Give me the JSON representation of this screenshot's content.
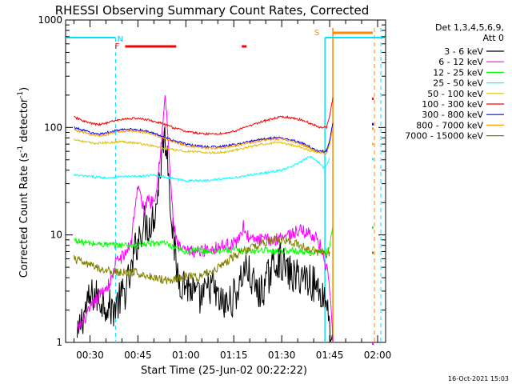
{
  "chart_data": {
    "type": "line",
    "title": "RHESSI Observing Summary Count Rates, Corrected",
    "xlabel": "Start Time (25-Jun-02 00:22:22)",
    "ylabel_main": "Corrected Count Rate (s",
    "ylabel_sup1": "-1",
    "ylabel_mid": " detector",
    "ylabel_sup2": "-1",
    "ylabel_end": ")",
    "y_scale": "log",
    "ylim": [
      1,
      1000
    ],
    "xlim_minutes": [
      22.37,
      122.5
    ],
    "x_ticks": [
      {
        "label": "00:30",
        "m": 30
      },
      {
        "label": "00:45",
        "m": 45
      },
      {
        "label": "01:00",
        "m": 60
      },
      {
        "label": "01:15",
        "m": 75
      },
      {
        "label": "01:30",
        "m": 90
      },
      {
        "label": "01:45",
        "m": 105
      },
      {
        "label": "02:00",
        "m": 120
      }
    ],
    "y_ticks": [
      {
        "label": "1",
        "v": 1
      },
      {
        "label": "10",
        "v": 10
      },
      {
        "label": "100",
        "v": 100
      },
      {
        "label": "1000",
        "v": 1000
      }
    ],
    "legend_header": [
      "Det 1,3,4,5,6,9,",
      "Att 0"
    ],
    "series": [
      {
        "name": "3 - 6 keV",
        "color": "#000000",
        "points": [
          [
            26,
            1
          ],
          [
            27,
            1.5
          ],
          [
            29,
            2.2
          ],
          [
            31,
            2.8
          ],
          [
            33,
            2.5
          ],
          [
            35,
            2.3
          ],
          [
            37,
            2.0
          ],
          [
            39,
            2.4
          ],
          [
            41,
            3.0
          ],
          [
            43,
            4.5
          ],
          [
            44,
            7
          ],
          [
            45,
            9
          ],
          [
            46,
            11
          ],
          [
            47,
            13
          ],
          [
            48,
            12
          ],
          [
            49,
            13
          ],
          [
            50,
            15
          ],
          [
            51,
            22
          ],
          [
            52,
            40
          ],
          [
            53,
            80
          ],
          [
            54,
            70
          ],
          [
            55,
            25
          ],
          [
            56,
            10
          ],
          [
            57,
            5
          ],
          [
            58,
            3.8
          ],
          [
            60,
            3.5
          ],
          [
            62,
            3.0
          ],
          [
            64,
            2.5
          ],
          [
            66,
            2.8
          ],
          [
            68,
            3.5
          ],
          [
            70,
            2.5
          ],
          [
            72,
            2.2
          ],
          [
            74,
            2.4
          ],
          [
            76,
            3.0
          ],
          [
            78,
            4.5
          ],
          [
            79,
            5
          ],
          [
            81,
            3.5
          ],
          [
            83,
            2.8
          ],
          [
            85,
            3.5
          ],
          [
            87,
            5
          ],
          [
            89,
            6
          ],
          [
            90,
            5.5
          ],
          [
            92,
            4.5
          ],
          [
            94,
            4
          ],
          [
            96,
            4.2
          ],
          [
            98,
            4.0
          ],
          [
            100,
            3.5
          ],
          [
            102,
            3.0
          ],
          [
            104,
            2.5
          ],
          [
            105,
            1.5
          ],
          [
            106,
            1
          ]
        ]
      },
      {
        "name": "6 - 12 keV",
        "color": "#ff00ff",
        "points": [
          [
            26,
            1.3
          ],
          [
            28,
            1.6
          ],
          [
            30,
            2.0
          ],
          [
            32,
            2.5
          ],
          [
            34,
            3.0
          ],
          [
            36,
            3.5
          ],
          [
            37,
            4.0
          ],
          [
            38,
            5.5
          ],
          [
            39,
            6.0
          ],
          [
            41,
            6.5
          ],
          [
            43,
            9
          ],
          [
            44,
            18
          ],
          [
            45,
            28
          ],
          [
            46,
            22
          ],
          [
            47,
            16
          ],
          [
            48,
            23
          ],
          [
            49,
            20
          ],
          [
            50,
            22
          ],
          [
            51,
            30
          ],
          [
            52,
            60
          ],
          [
            53,
            120
          ],
          [
            53.5,
            200
          ],
          [
            54,
            130
          ],
          [
            55,
            40
          ],
          [
            56,
            14
          ],
          [
            57,
            9
          ],
          [
            58,
            7.5
          ],
          [
            60,
            7
          ],
          [
            64,
            7
          ],
          [
            68,
            7.5
          ],
          [
            72,
            8
          ],
          [
            76,
            8.5
          ],
          [
            78,
            12
          ],
          [
            80,
            9
          ],
          [
            84,
            9
          ],
          [
            88,
            9
          ],
          [
            90,
            10
          ],
          [
            92,
            10
          ],
          [
            96,
            11
          ],
          [
            100,
            10
          ],
          [
            102,
            8
          ],
          [
            104,
            5
          ],
          [
            105,
            3
          ],
          [
            106,
            1
          ]
        ]
      },
      {
        "name": "12 - 25 keV",
        "color": "#00ff00",
        "points": [
          [
            25,
            9
          ],
          [
            28,
            8.5
          ],
          [
            30,
            8.3
          ],
          [
            34,
            8.2
          ],
          [
            38,
            8.0
          ],
          [
            40,
            8.1
          ],
          [
            44,
            8.0
          ],
          [
            48,
            8.2
          ],
          [
            50,
            8.3
          ],
          [
            52,
            8.5
          ],
          [
            54,
            8.2
          ],
          [
            56,
            7.5
          ],
          [
            60,
            7.0
          ],
          [
            64,
            7.2
          ],
          [
            68,
            7.0
          ],
          [
            72,
            7.3
          ],
          [
            76,
            7.2
          ],
          [
            80,
            7.0
          ],
          [
            84,
            7.3
          ],
          [
            88,
            7.0
          ],
          [
            92,
            7.2
          ],
          [
            96,
            7.0
          ],
          [
            100,
            6.8
          ],
          [
            104,
            7.0
          ],
          [
            105,
            8
          ],
          [
            106,
            12
          ]
        ]
      },
      {
        "name": "25 - 50 keV",
        "color": "#00ffff",
        "points": [
          [
            25,
            36
          ],
          [
            30,
            35
          ],
          [
            35,
            34
          ],
          [
            40,
            35
          ],
          [
            45,
            35
          ],
          [
            50,
            36
          ],
          [
            55,
            34
          ],
          [
            60,
            32
          ],
          [
            65,
            32
          ],
          [
            70,
            33
          ],
          [
            75,
            34
          ],
          [
            80,
            36
          ],
          [
            85,
            38
          ],
          [
            90,
            40
          ],
          [
            93,
            43
          ],
          [
            96,
            48
          ],
          [
            98,
            52
          ],
          [
            99,
            54
          ],
          [
            100,
            52
          ],
          [
            102,
            46
          ],
          [
            103,
            42
          ],
          [
            104,
            45
          ],
          [
            105,
            52
          ]
        ]
      },
      {
        "name": "50 - 100 keV",
        "color": "#e0c000",
        "points": [
          [
            25,
            78
          ],
          [
            28,
            74
          ],
          [
            31,
            71
          ],
          [
            35,
            72
          ],
          [
            38,
            73
          ],
          [
            40,
            74
          ],
          [
            44,
            72
          ],
          [
            48,
            69
          ],
          [
            52,
            65
          ],
          [
            56,
            62
          ],
          [
            60,
            60
          ],
          [
            64,
            59
          ],
          [
            68,
            58
          ],
          [
            72,
            59
          ],
          [
            76,
            62
          ],
          [
            80,
            66
          ],
          [
            84,
            70
          ],
          [
            88,
            72
          ],
          [
            90,
            72
          ],
          [
            92,
            70
          ],
          [
            95,
            67
          ],
          [
            98,
            62
          ],
          [
            100,
            60
          ],
          [
            102,
            59
          ],
          [
            104,
            62
          ],
          [
            105,
            72
          ]
        ]
      },
      {
        "name": "100 - 300 keV",
        "color": "#ff0000",
        "points": [
          [
            25,
            125
          ],
          [
            27,
            118
          ],
          [
            29,
            112
          ],
          [
            31,
            108
          ],
          [
            33,
            106
          ],
          [
            35,
            110
          ],
          [
            38,
            116
          ],
          [
            41,
            120
          ],
          [
            44,
            122
          ],
          [
            48,
            118
          ],
          [
            52,
            110
          ],
          [
            56,
            100
          ],
          [
            60,
            92
          ],
          [
            64,
            88
          ],
          [
            68,
            87
          ],
          [
            72,
            88
          ],
          [
            76,
            94
          ],
          [
            80,
            104
          ],
          [
            84,
            114
          ],
          [
            88,
            122
          ],
          [
            90,
            125
          ],
          [
            92,
            124
          ],
          [
            95,
            120
          ],
          [
            98,
            112
          ],
          [
            100,
            106
          ],
          [
            102,
            100
          ],
          [
            104,
            100
          ],
          [
            105,
            130
          ],
          [
            106,
            190
          ]
        ]
      },
      {
        "name": "300 - 800 keV",
        "color": "#0000ff",
        "points": [
          [
            25,
            100
          ],
          [
            27,
            96
          ],
          [
            29,
            92
          ],
          [
            31,
            88
          ],
          [
            33,
            87
          ],
          [
            35,
            89
          ],
          [
            38,
            93
          ],
          [
            41,
            96
          ],
          [
            44,
            96
          ],
          [
            48,
            92
          ],
          [
            52,
            84
          ],
          [
            56,
            76
          ],
          [
            60,
            70
          ],
          [
            64,
            67
          ],
          [
            68,
            66
          ],
          [
            72,
            67
          ],
          [
            76,
            70
          ],
          [
            80,
            74
          ],
          [
            84,
            78
          ],
          [
            88,
            80
          ],
          [
            90,
            80
          ],
          [
            92,
            78
          ],
          [
            95,
            74
          ],
          [
            98,
            68
          ],
          [
            100,
            63
          ],
          [
            102,
            60
          ],
          [
            104,
            60
          ],
          [
            105,
            75
          ],
          [
            106,
            110
          ]
        ]
      },
      {
        "name": "800 - 7000 keV",
        "color": "#ff9900",
        "points": [
          [
            25,
            95
          ],
          [
            27,
            92
          ],
          [
            29,
            88
          ],
          [
            31,
            85
          ],
          [
            33,
            84
          ],
          [
            35,
            86
          ],
          [
            38,
            90
          ],
          [
            41,
            93
          ],
          [
            44,
            93
          ],
          [
            48,
            89
          ],
          [
            52,
            82
          ],
          [
            56,
            74
          ],
          [
            60,
            68
          ],
          [
            64,
            65
          ],
          [
            68,
            64
          ],
          [
            72,
            65
          ],
          [
            76,
            68
          ],
          [
            80,
            72
          ],
          [
            84,
            76
          ],
          [
            88,
            78
          ],
          [
            90,
            78
          ],
          [
            92,
            76
          ],
          [
            95,
            72
          ],
          [
            98,
            66
          ],
          [
            100,
            61
          ],
          [
            102,
            58
          ],
          [
            104,
            57
          ],
          [
            105,
            70
          ],
          [
            106,
            100
          ]
        ]
      },
      {
        "name": "7000 - 15000 keV",
        "color": "#808000",
        "points": [
          [
            25,
            6
          ],
          [
            28,
            5.5
          ],
          [
            30,
            5.2
          ],
          [
            32,
            5.0
          ],
          [
            34,
            4.8
          ],
          [
            36,
            4.6
          ],
          [
            38,
            4.5
          ],
          [
            40,
            4.5
          ],
          [
            42,
            4.4
          ],
          [
            44,
            4.5
          ],
          [
            46,
            4.3
          ],
          [
            48,
            4.2
          ],
          [
            50,
            4.0
          ],
          [
            54,
            3.8
          ],
          [
            58,
            4.0
          ],
          [
            62,
            4.2
          ],
          [
            64,
            4.0
          ],
          [
            66,
            4.4
          ],
          [
            68,
            4.5
          ],
          [
            70,
            5.0
          ],
          [
            72,
            5.5
          ],
          [
            74,
            6.0
          ],
          [
            76,
            6.5
          ],
          [
            78,
            7.0
          ],
          [
            80,
            7.5
          ],
          [
            82,
            8.0
          ],
          [
            84,
            8.5
          ],
          [
            86,
            8.8
          ],
          [
            88,
            9.0
          ],
          [
            90,
            9.0
          ],
          [
            92,
            8.6
          ],
          [
            94,
            8.3
          ],
          [
            96,
            8.0
          ],
          [
            98,
            7.6
          ],
          [
            100,
            7.2
          ],
          [
            102,
            6.8
          ],
          [
            104,
            6.5
          ],
          [
            105,
            7.0
          ]
        ]
      }
    ],
    "annotations": [
      {
        "label": "N",
        "color": "#00bfff"
      },
      {
        "label": "F",
        "color": "#ff0000"
      },
      {
        "label": "S",
        "color": "#ff8800"
      }
    ],
    "timestamp": "16-Oct-2021 15:03"
  }
}
